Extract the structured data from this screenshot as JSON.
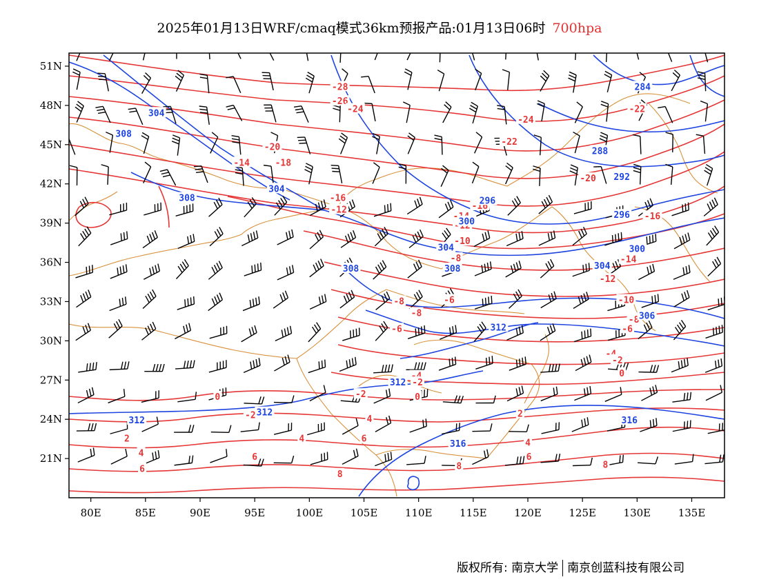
{
  "title": {
    "text": "2025年01月13日WRF/cmaq模式36km预报产品:01月13日06时",
    "level": "700hpa",
    "level_color": "#e53030"
  },
  "map": {
    "lon_range": [
      78,
      138
    ],
    "lat_range": [
      18,
      52
    ],
    "x_ticks": [
      "80E",
      "85E",
      "90E",
      "95E",
      "100E",
      "105E",
      "110E",
      "115E",
      "120E",
      "125E",
      "130E",
      "135E"
    ],
    "x_tick_values": [
      80,
      85,
      90,
      95,
      100,
      105,
      110,
      115,
      120,
      125,
      130,
      135
    ],
    "y_ticks": [
      "21N",
      "24N",
      "27N",
      "30N",
      "33N",
      "36N",
      "39N",
      "42N",
      "45N",
      "48N",
      "51N"
    ],
    "y_tick_values": [
      21,
      24,
      27,
      30,
      33,
      36,
      39,
      42,
      45,
      48,
      51
    ],
    "colors": {
      "temperature": "#e53535",
      "height": "#1d44e0",
      "border": "#d9903a",
      "wind": "#000000"
    }
  },
  "temperature_labels": [
    {
      "text": "-28",
      "lon": 102.8,
      "lat": 49.4
    },
    {
      "text": "-26",
      "lon": 102.8,
      "lat": 48.3
    },
    {
      "text": "-24",
      "lon": 104.2,
      "lat": 47.7
    },
    {
      "text": "-24",
      "lon": 119.8,
      "lat": 46.9
    },
    {
      "text": "-22",
      "lon": 130.0,
      "lat": 47.7
    },
    {
      "text": "-22",
      "lon": 118.3,
      "lat": 45.2
    },
    {
      "text": "-20",
      "lon": 96.6,
      "lat": 44.8
    },
    {
      "text": "-20",
      "lon": 125.5,
      "lat": 42.4
    },
    {
      "text": "-18",
      "lon": 97.6,
      "lat": 43.6
    },
    {
      "text": "-16",
      "lon": 102.6,
      "lat": 40.9
    },
    {
      "text": "-16",
      "lon": 115.6,
      "lat": 40.3
    },
    {
      "text": "-16",
      "lon": 131.4,
      "lat": 39.5
    },
    {
      "text": "-14",
      "lon": 93.8,
      "lat": 43.6
    },
    {
      "text": "-14",
      "lon": 113.9,
      "lat": 39.5
    },
    {
      "text": "-14",
      "lon": 129.2,
      "lat": 36.2
    },
    {
      "text": "-12",
      "lon": 102.7,
      "lat": 40.0
    },
    {
      "text": "-12",
      "lon": 114.0,
      "lat": 38.8
    },
    {
      "text": "-12",
      "lon": 127.3,
      "lat": 34.7
    },
    {
      "text": "-10",
      "lon": 114.0,
      "lat": 37.6
    },
    {
      "text": "-10",
      "lon": 129.0,
      "lat": 33.1
    },
    {
      "text": "-8",
      "lon": 113.4,
      "lat": 36.3
    },
    {
      "text": "-8",
      "lon": 108.2,
      "lat": 33.0
    },
    {
      "text": "-8",
      "lon": 109.8,
      "lat": 32.1
    },
    {
      "text": "-8",
      "lon": 129.7,
      "lat": 31.6
    },
    {
      "text": "-6",
      "lon": 112.8,
      "lat": 33.1
    },
    {
      "text": "-6",
      "lon": 108.0,
      "lat": 30.9
    },
    {
      "text": "-6",
      "lon": 129.1,
      "lat": 30.9
    },
    {
      "text": "-4",
      "lon": 127.6,
      "lat": 29.0
    },
    {
      "text": "-4",
      "lon": 109.8,
      "lat": 27.3
    },
    {
      "text": "-2",
      "lon": 128.2,
      "lat": 28.5
    },
    {
      "text": "-2",
      "lon": 109.9,
      "lat": 26.8
    },
    {
      "text": "-2",
      "lon": 104.7,
      "lat": 25.9
    },
    {
      "text": "-2",
      "lon": 94.6,
      "lat": 24.3
    },
    {
      "text": "0",
      "lon": 128.6,
      "lat": 27.5
    },
    {
      "text": "0",
      "lon": 91.6,
      "lat": 25.7
    },
    {
      "text": "0",
      "lon": 109.9,
      "lat": 25.7
    },
    {
      "text": "2",
      "lon": 119.3,
      "lat": 24.4
    },
    {
      "text": "2",
      "lon": 83.3,
      "lat": 22.5
    },
    {
      "text": "4",
      "lon": 105.5,
      "lat": 24.0
    },
    {
      "text": "4",
      "lon": 120.0,
      "lat": 22.2
    },
    {
      "text": "4",
      "lon": 84.6,
      "lat": 21.4
    },
    {
      "text": "4",
      "lon": 99.3,
      "lat": 22.5
    },
    {
      "text": "6",
      "lon": 105.0,
      "lat": 22.5
    },
    {
      "text": "6",
      "lon": 120.1,
      "lat": 21.1
    },
    {
      "text": "6",
      "lon": 84.7,
      "lat": 20.2
    },
    {
      "text": "6",
      "lon": 95.0,
      "lat": 21.1
    },
    {
      "text": "8",
      "lon": 113.7,
      "lat": 20.4
    },
    {
      "text": "8",
      "lon": 127.1,
      "lat": 20.5
    },
    {
      "text": "8",
      "lon": 102.8,
      "lat": 19.8
    }
  ],
  "height_labels": [
    {
      "text": "284",
      "lon": 130.5,
      "lat": 49.4
    },
    {
      "text": "288",
      "lon": 126.6,
      "lat": 44.5
    },
    {
      "text": "292",
      "lon": 128.6,
      "lat": 42.5
    },
    {
      "text": "296",
      "lon": 116.3,
      "lat": 40.7
    },
    {
      "text": "296",
      "lon": 128.6,
      "lat": 39.6
    },
    {
      "text": "300",
      "lon": 114.4,
      "lat": 39.1
    },
    {
      "text": "300",
      "lon": 130.0,
      "lat": 37.0
    },
    {
      "text": "304",
      "lon": 86.0,
      "lat": 47.4
    },
    {
      "text": "304",
      "lon": 97.0,
      "lat": 41.6
    },
    {
      "text": "304",
      "lon": 112.5,
      "lat": 37.1
    },
    {
      "text": "304",
      "lon": 126.8,
      "lat": 35.7
    },
    {
      "text": "308",
      "lon": 83.0,
      "lat": 45.8
    },
    {
      "text": "308",
      "lon": 88.8,
      "lat": 40.9
    },
    {
      "text": "308",
      "lon": 103.8,
      "lat": 35.5
    },
    {
      "text": "308",
      "lon": 113.1,
      "lat": 35.5
    },
    {
      "text": "306",
      "lon": 130.9,
      "lat": 31.9
    },
    {
      "text": "312",
      "lon": 95.9,
      "lat": 24.5
    },
    {
      "text": "312",
      "lon": 117.3,
      "lat": 31.0
    },
    {
      "text": "312",
      "lon": 84.2,
      "lat": 23.9
    },
    {
      "text": "312",
      "lon": 108.1,
      "lat": 26.8
    },
    {
      "text": "316",
      "lon": 129.3,
      "lat": 23.9
    },
    {
      "text": "316",
      "lon": 113.6,
      "lat": 22.1
    }
  ],
  "copyright": {
    "left": "版权所有: 南京大学",
    "right": "南京创蓝科技有限公司"
  }
}
